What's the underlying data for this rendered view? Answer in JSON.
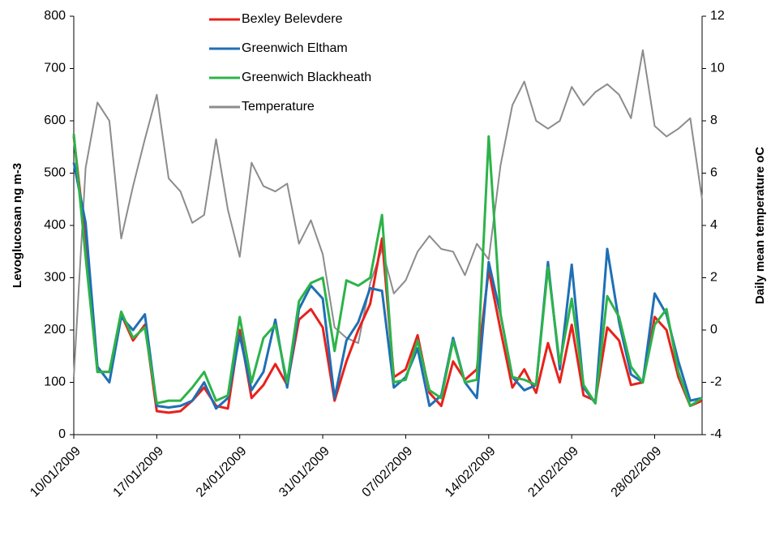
{
  "chart_data": {
    "type": "line",
    "y_label": "Levoglucosan ng m-3",
    "y2_label": "Daily mean temperature oC",
    "x": [
      "10/01/2009",
      "11/01/2009",
      "12/01/2009",
      "13/01/2009",
      "14/01/2009",
      "15/01/2009",
      "16/01/2009",
      "17/01/2009",
      "18/01/2009",
      "19/01/2009",
      "20/01/2009",
      "21/01/2009",
      "22/01/2009",
      "23/01/2009",
      "24/01/2009",
      "25/01/2009",
      "26/01/2009",
      "27/01/2009",
      "28/01/2009",
      "29/01/2009",
      "30/01/2009",
      "31/01/2009",
      "01/02/2009",
      "02/02/2009",
      "03/02/2009",
      "04/02/2009",
      "05/02/2009",
      "06/02/2009",
      "07/02/2009",
      "08/02/2009",
      "09/02/2009",
      "10/02/2009",
      "11/02/2009",
      "12/02/2009",
      "13/02/2009",
      "14/02/2009",
      "15/02/2009",
      "16/02/2009",
      "17/02/2009",
      "18/02/2009",
      "19/02/2009",
      "20/02/2009",
      "21/02/2009",
      "22/02/2009",
      "23/02/2009",
      "24/02/2009",
      "25/02/2009",
      "26/02/2009",
      "27/02/2009",
      "28/02/2009",
      "01/03/2009",
      "02/03/2009",
      "03/03/2009",
      "04/03/2009"
    ],
    "xlim": [
      "10/01/2009",
      "04/03/2009"
    ],
    "xticks": [
      "10/01/2009",
      "17/01/2009",
      "24/01/2009",
      "31/01/2009",
      "07/02/2009",
      "14/02/2009",
      "21/02/2009",
      "28/02/2009"
    ],
    "ylim": [
      0,
      800
    ],
    "yticks": [
      0,
      100,
      200,
      300,
      400,
      500,
      600,
      700,
      800
    ],
    "y2lim": [
      -4,
      12
    ],
    "y2ticks": [
      -4,
      -2,
      0,
      2,
      4,
      6,
      8,
      10,
      12
    ],
    "legend": "top",
    "series": [
      {
        "name": "Bexley Belevdere",
        "color": "#e8211b",
        "values": [
          570,
          370,
          120,
          120,
          230,
          180,
          210,
          45,
          42,
          45,
          65,
          90,
          55,
          50,
          200,
          70,
          95,
          135,
          95,
          220,
          240,
          205,
          65,
          140,
          200,
          250,
          375,
          110,
          125,
          190,
          80,
          55,
          140,
          105,
          125,
          315,
          200,
          90,
          125,
          80,
          175,
          100,
          210,
          75,
          65,
          205,
          180,
          95,
          100,
          225,
          200,
          110,
          55,
          65
        ]
      },
      {
        "name": "Greenwich Eltham",
        "color": "#1f6fb5",
        "values": [
          520,
          405,
          130,
          100,
          225,
          200,
          230,
          55,
          52,
          55,
          65,
          100,
          50,
          70,
          190,
          85,
          120,
          220,
          90,
          240,
          285,
          260,
          70,
          180,
          215,
          280,
          275,
          90,
          110,
          165,
          55,
          75,
          185,
          100,
          70,
          330,
          230,
          110,
          85,
          95,
          330,
          125,
          325,
          90,
          60,
          355,
          215,
          115,
          100,
          270,
          230,
          140,
          65,
          70
        ]
      },
      {
        "name": "Greenwich Blackheath",
        "color": "#2db34a",
        "values": [
          575,
          340,
          120,
          120,
          235,
          185,
          205,
          60,
          65,
          65,
          90,
          120,
          65,
          75,
          225,
          100,
          185,
          210,
          100,
          255,
          290,
          300,
          160,
          295,
          285,
          300,
          420,
          100,
          105,
          180,
          85,
          70,
          180,
          100,
          105,
          570,
          230,
          110,
          105,
          95,
          320,
          135,
          260,
          95,
          60,
          265,
          225,
          130,
          100,
          210,
          240,
          120,
          55,
          70
        ]
      },
      {
        "name": "Temperature",
        "color": "#8c8c8c",
        "axis": "y2",
        "values": [
          -1.8,
          6.2,
          8.7,
          8.0,
          3.5,
          5.5,
          7.3,
          9.0,
          5.8,
          5.3,
          4.1,
          4.4,
          7.3,
          4.6,
          2.8,
          6.4,
          5.5,
          5.3,
          5.6,
          3.3,
          4.2,
          2.9,
          0.1,
          -0.3,
          -0.5,
          1.8,
          3.1,
          1.4,
          1.9,
          3.0,
          3.6,
          3.1,
          3.0,
          2.1,
          3.3,
          2.7,
          6.3,
          8.6,
          9.5,
          8.0,
          7.7,
          8.0,
          9.3,
          8.6,
          9.1,
          9.4,
          9.0,
          8.1,
          10.7,
          7.8,
          7.4,
          7.7,
          8.1,
          5.0
        ]
      }
    ]
  }
}
